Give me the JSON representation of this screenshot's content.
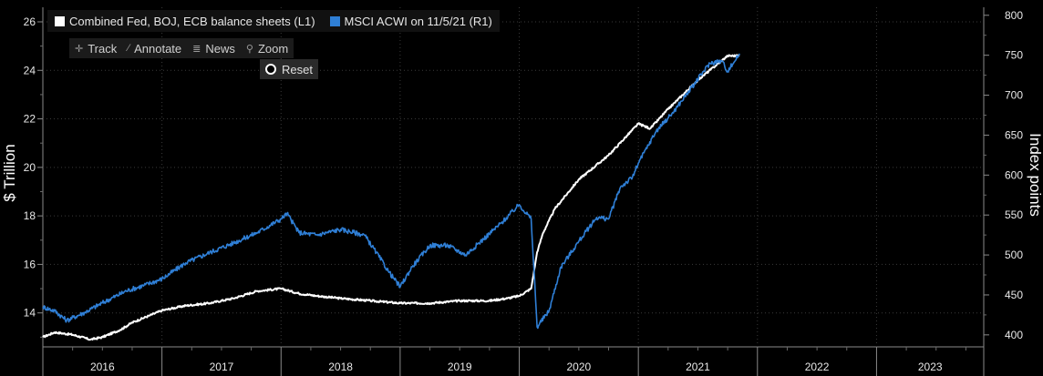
{
  "legend": {
    "items": [
      {
        "label": "Combined Fed, BOJ, ECB balance sheets  (L1)",
        "color": "#ffffff"
      },
      {
        "label": "MSCI ACWI  on 11/5/21 (R1)",
        "color": "#2f7fd6"
      }
    ]
  },
  "toolbar": {
    "track": "Track",
    "annotate": "Annotate",
    "news": "News",
    "zoom": "Zoom",
    "reset": "Reset"
  },
  "colors": {
    "background": "#000000",
    "grid": "#3a3a3a",
    "balance_line": "#ffffff",
    "msci_line": "#2f7fd6"
  },
  "chart_data": {
    "type": "line",
    "xlabel": "",
    "y_left_label": "$ Trillion",
    "y_right_label": "Index points",
    "x_range": [
      2016.0,
      2023.9
    ],
    "y_left_range": [
      12.6,
      26.6
    ],
    "y_right_range": [
      385,
      810
    ],
    "y_left_ticks": [
      14,
      16,
      18,
      20,
      22,
      24,
      26
    ],
    "y_right_ticks": [
      400,
      450,
      500,
      550,
      600,
      650,
      700,
      750,
      800
    ],
    "x_tick_labels": [
      "2016",
      "2017",
      "2018",
      "2019",
      "2020",
      "2021",
      "2022",
      "2023"
    ],
    "grid": true,
    "legend_position": "top-left",
    "series": [
      {
        "name": "Combined Fed, BOJ, ECB balance sheets  (L1)",
        "axis": "left",
        "color": "#ffffff",
        "x": [
          2016.0,
          2016.1,
          2016.25,
          2016.4,
          2016.5,
          2016.65,
          2016.75,
          2016.9,
          2017.0,
          2017.2,
          2017.4,
          2017.6,
          2017.8,
          2018.0,
          2018.15,
          2018.3,
          2018.5,
          2018.75,
          2019.0,
          2019.25,
          2019.5,
          2019.75,
          2019.9,
          2020.0,
          2020.1,
          2020.15,
          2020.2,
          2020.3,
          2020.5,
          2020.75,
          2021.0,
          2021.1,
          2021.25,
          2021.5,
          2021.75,
          2021.85
        ],
        "y": [
          13.0,
          13.2,
          13.1,
          12.9,
          13.0,
          13.3,
          13.6,
          13.9,
          14.1,
          14.3,
          14.4,
          14.6,
          14.9,
          15.0,
          14.8,
          14.7,
          14.6,
          14.5,
          14.4,
          14.4,
          14.5,
          14.5,
          14.6,
          14.7,
          15.0,
          16.5,
          17.3,
          18.3,
          19.5,
          20.5,
          21.8,
          21.6,
          22.4,
          23.6,
          24.6,
          24.6
        ]
      },
      {
        "name": "MSCI ACWI  on 11/5/21 (R1)",
        "axis": "right",
        "color": "#2f7fd6",
        "x": [
          2016.0,
          2016.1,
          2016.2,
          2016.35,
          2016.5,
          2016.7,
          2016.85,
          2017.0,
          2017.2,
          2017.4,
          2017.6,
          2017.8,
          2018.0,
          2018.05,
          2018.15,
          2018.3,
          2018.5,
          2018.7,
          2018.8,
          2018.9,
          2019.0,
          2019.1,
          2019.25,
          2019.4,
          2019.55,
          2019.7,
          2019.85,
          2020.0,
          2020.1,
          2020.15,
          2020.25,
          2020.35,
          2020.5,
          2020.65,
          2020.75,
          2020.85,
          2020.95,
          2021.0,
          2021.15,
          2021.3,
          2021.45,
          2021.6,
          2021.7,
          2021.75,
          2021.85
        ],
        "y": [
          435,
          430,
          418,
          428,
          440,
          455,
          462,
          470,
          490,
          503,
          515,
          528,
          545,
          552,
          528,
          525,
          532,
          525,
          503,
          480,
          460,
          485,
          512,
          512,
          500,
          520,
          540,
          563,
          545,
          410,
          430,
          485,
          517,
          547,
          545,
          585,
          597,
          615,
          655,
          680,
          710,
          740,
          743,
          730,
          752
        ]
      }
    ]
  }
}
